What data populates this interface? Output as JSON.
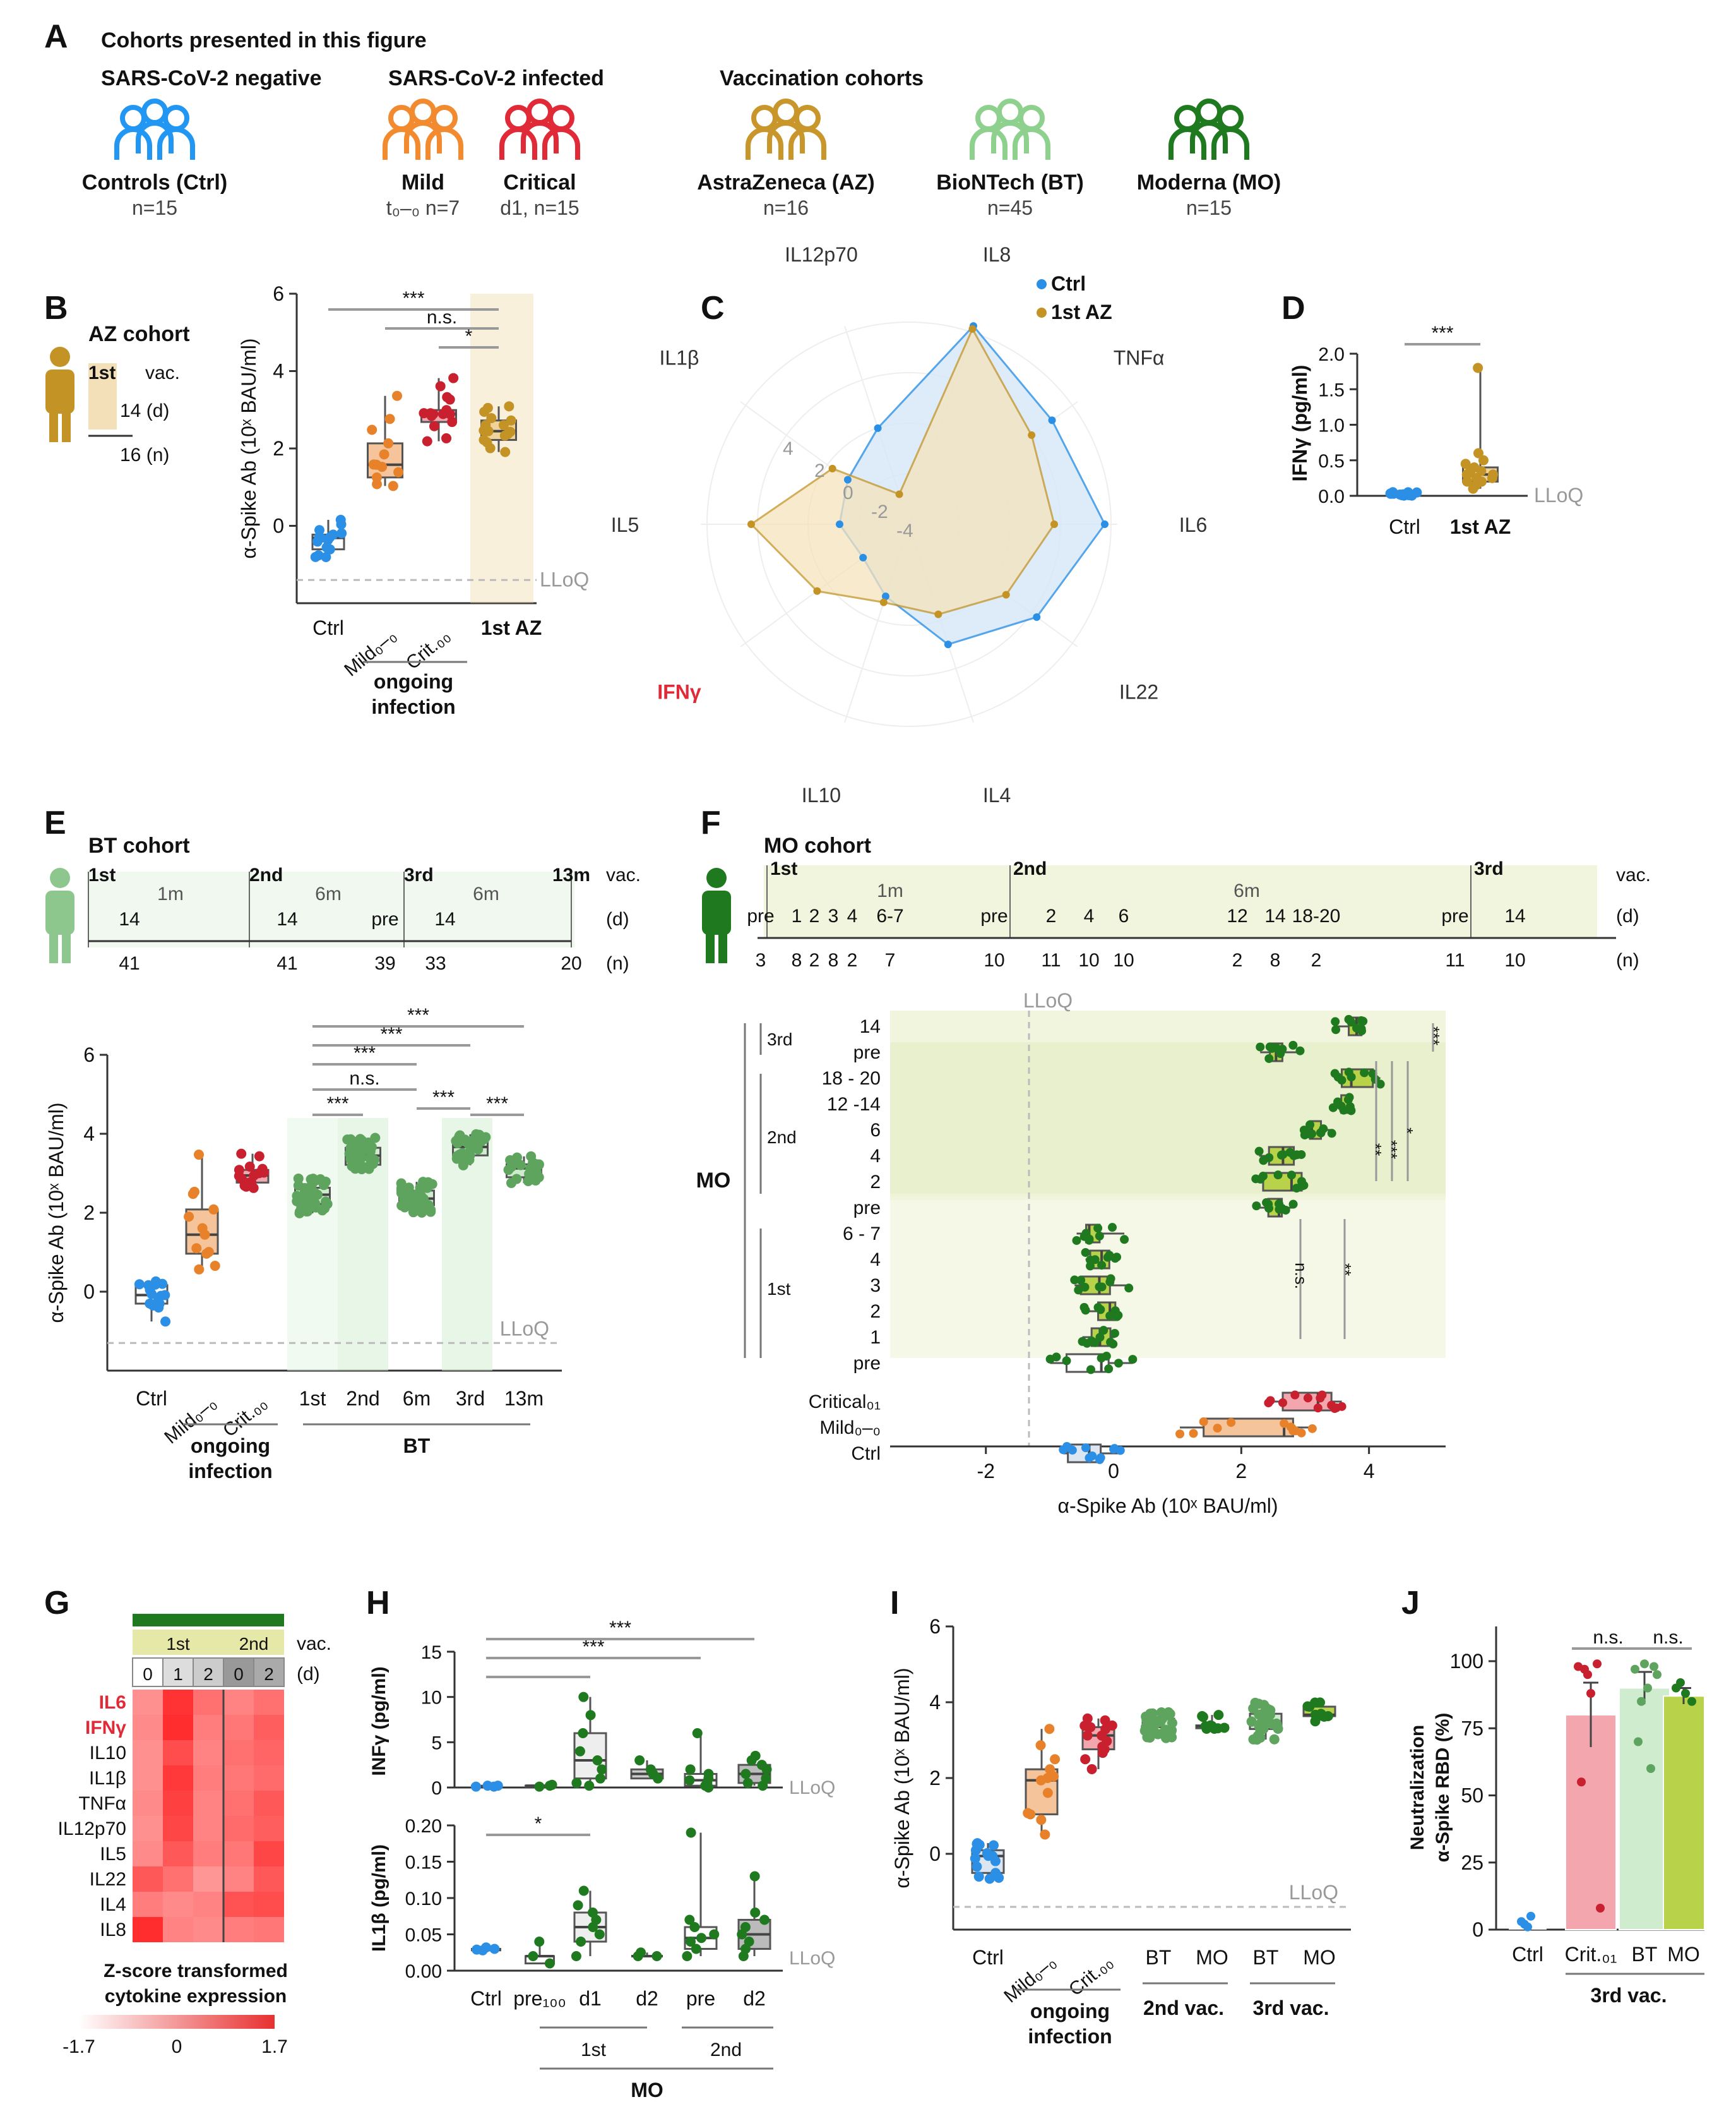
{
  "figure": {
    "panels": [
      "A",
      "B",
      "C",
      "D",
      "E",
      "F",
      "G",
      "H",
      "I",
      "J"
    ]
  },
  "panelA": {
    "title": "Cohorts presented in this figure",
    "groups": [
      {
        "header": "SARS-CoV-2 negative"
      },
      {
        "header": "SARS-CoV-2 infected"
      },
      {
        "header": "Vaccination cohorts"
      }
    ],
    "cohorts": [
      {
        "name": "Controls (Ctrl)",
        "n": "n=15",
        "color": "#2196f3",
        "icon": "people-group-icon"
      },
      {
        "name": "Mild",
        "n": "t₀–₀ n=7",
        "color": "#f28a30",
        "icon": "people-group-icon"
      },
      {
        "name": "Critical",
        "n": "d1, n=15",
        "color": "#e02a38",
        "icon": "people-group-icon"
      },
      {
        "name": "AstraZeneca (AZ)",
        "n": "n=16",
        "color": "#c8962a",
        "icon": "people-group-icon"
      },
      {
        "name": "BioNTech (BT)",
        "n": "n=45",
        "color": "#8ed08e",
        "icon": "people-group-icon"
      },
      {
        "name": "Moderna (MO)",
        "n": "n=15",
        "color": "#1f7a1f",
        "icon": "people-group-icon"
      }
    ]
  },
  "panelB": {
    "header": "AZ cohort",
    "timeline": {
      "dose": "1st",
      "vac": "vac.",
      "days": "14 (d)",
      "n": "16 (n)"
    },
    "ylabel": "α-Spike Ab (10ˣ BAU/ml)",
    "lloq": "LLoQ",
    "xlabels": [
      "Ctrl",
      "Mild₀–₀",
      "Crit.₀₀",
      "1st AZ"
    ],
    "group_label": [
      "ongoing",
      "infection"
    ],
    "sig": [
      "***",
      "n.s.",
      "*"
    ]
  },
  "panelC": {
    "legend": [
      "Ctrl",
      "1st AZ"
    ],
    "axes": [
      "IL8",
      "TNFα",
      "IL6",
      "IL22",
      "IL4",
      "IL10",
      "IFNγ",
      "IL5",
      "IL1β",
      "IL12p70"
    ],
    "radial_ticks": [
      "4",
      "2",
      "0",
      "-2",
      "-4"
    ]
  },
  "panelD": {
    "ylabel": "IFNγ (pg/ml)",
    "xlabels": [
      "Ctrl",
      "1st AZ"
    ],
    "lloq": "LLoQ",
    "sig": "***"
  },
  "panelE": {
    "header": "BT cohort",
    "timeline": {
      "doses": [
        "1st",
        "2nd",
        "3rd",
        "13m"
      ],
      "intervals": [
        "1m",
        "6m",
        "6m"
      ],
      "days": [
        "14",
        "14",
        "pre",
        "14"
      ],
      "n": [
        "41",
        "41",
        "39",
        "33",
        "20"
      ],
      "vac": "vac.",
      "d": "(d)",
      "nlabel": "(n)"
    },
    "ylabel": "α-Spike Ab (10ˣ BAU/ml)",
    "lloq": "LLoQ",
    "xlabels": [
      "Ctrl",
      "Mild₀–₀",
      "Crit.₀₀",
      "1st",
      "2nd",
      "6m",
      "3rd",
      "13m"
    ],
    "group_label": [
      "ongoing",
      "infection"
    ],
    "group_bt": "BT",
    "sig": [
      "***",
      "***",
      "***",
      "n.s.",
      "***",
      "***",
      "***"
    ]
  },
  "panelF": {
    "header": "MO cohort",
    "timeline": {
      "doses": [
        "1st",
        "2nd",
        "3rd"
      ],
      "intervals": [
        "1m",
        "6m"
      ],
      "days": [
        "pre",
        "1",
        "2",
        "3",
        "4",
        "6-7",
        "pre",
        "2",
        "4",
        "6",
        "12",
        "14",
        "18-20",
        "pre",
        "14"
      ],
      "n": [
        "3",
        "8",
        "2",
        "8",
        "2",
        "7",
        "10",
        "11",
        "10",
        "10",
        "2",
        "8",
        "2",
        "11",
        "10"
      ],
      "vac": "vac.",
      "d": "(d)",
      "nlabel": "(n)"
    },
    "lloq": "LLoQ",
    "rowlabels": [
      "14",
      "pre",
      "18 - 20",
      "12 -14",
      "6",
      "4",
      "2",
      "pre",
      "6 - 7",
      "4",
      "3",
      "2",
      "1",
      "pre",
      "Critical₀₁",
      "Mild₀–₀",
      "Ctrl"
    ],
    "dose_labels": [
      "3rd",
      "2nd",
      "1st"
    ],
    "group_label": "MO",
    "xlabel": "α-Spike Ab (10ˣ BAU/ml)",
    "xticks": [
      "-2",
      "0",
      "2",
      "4"
    ],
    "sig": [
      "***",
      "**",
      "***",
      "*",
      "n.s.",
      "**"
    ]
  },
  "panelG": {
    "dose_labels": [
      "1st",
      "2nd"
    ],
    "days": [
      "0",
      "1",
      "2",
      "0",
      "2"
    ],
    "vac": "vac.",
    "d": "(d)",
    "rows": [
      "IL6",
      "IFNγ",
      "IL10",
      "IL1β",
      "TNFα",
      "IL12p70",
      "IL5",
      "IL22",
      "IL4",
      "IL8"
    ],
    "highlight_rows": [
      "IL6",
      "IFNγ"
    ],
    "values": [
      [
        0.1,
        1.6,
        0.6,
        0.3,
        0.6
      ],
      [
        0.2,
        1.7,
        0.4,
        0.5,
        0.9
      ],
      [
        0.1,
        1.2,
        0.3,
        0.6,
        0.8
      ],
      [
        0.1,
        1.5,
        0.4,
        0.5,
        0.7
      ],
      [
        0.2,
        1.4,
        0.3,
        0.6,
        1.0
      ],
      [
        0.1,
        1.3,
        0.3,
        0.7,
        0.9
      ],
      [
        0.2,
        1.0,
        0.4,
        0.5,
        1.3
      ],
      [
        1.0,
        0.6,
        0.0,
        0.3,
        1.0
      ],
      [
        0.4,
        0.2,
        0.3,
        1.1,
        1.2
      ],
      [
        1.7,
        0.3,
        0.2,
        0.4,
        0.5
      ]
    ],
    "scale_title": [
      "Z-score transformed",
      "cytokine expression"
    ],
    "scale_ticks": [
      "-1.7",
      "0",
      "1.7"
    ]
  },
  "panelH": {
    "top": {
      "ylabel": "INFγ (pg/ml)",
      "yticks": [
        "0",
        "5",
        "10",
        "15"
      ],
      "lloq": "LLoQ",
      "sig": [
        "***",
        "***"
      ]
    },
    "bottom": {
      "ylabel": "IL1β (pg/ml)",
      "yticks": [
        "0.00",
        "0.05",
        "0.10",
        "0.15",
        "0.20"
      ],
      "lloq": "LLoQ",
      "sig": [
        "*"
      ]
    },
    "xlabels": [
      "Ctrl",
      "pre₁₀₀",
      "d1",
      "d2",
      "pre",
      "d2"
    ],
    "dose_labels": [
      "1st",
      "2nd"
    ],
    "group_label": "MO"
  },
  "panelI": {
    "ylabel": "α-Spike Ab (10ˣ BAU/ml)",
    "yticks": [
      "0",
      "2",
      "4",
      "6"
    ],
    "lloq": "LLoQ",
    "xlabels": [
      "Ctrl",
      "Mild₀–₀",
      "Crit.₀₀",
      "BT",
      "MO",
      "BT",
      "MO"
    ],
    "group_label": [
      "ongoing",
      "infection"
    ],
    "vac_labels": [
      "2nd vac.",
      "3rd vac."
    ]
  },
  "panelJ": {
    "ylabel": [
      "Neutralization",
      "α-Spike RBD (%)"
    ],
    "yticks": [
      "0",
      "25",
      "50",
      "75",
      "100"
    ],
    "xlabels": [
      "Ctrl",
      "Crit.₀₁",
      "BT",
      "MO"
    ],
    "vac_label": "3rd vac.",
    "sig": [
      "n.s.",
      "n.s."
    ]
  },
  "chart_data": [
    {
      "type": "scatter",
      "title": "",
      "ylabel": "α-Spike Ab (10ˣ BAU/ml)",
      "ylim": [
        -2,
        6
      ],
      "categories": [
        "Ctrl",
        "Mild",
        "Crit.",
        "1st AZ"
      ],
      "series": [
        {
          "values": [
            -0.3,
            2.2,
            3.0,
            2.5
          ]
        }
      ]
    },
    {
      "type": "scatter",
      "ylabel": "IFNγ (pg/ml)",
      "ylim": [
        0,
        2.0
      ],
      "categories": [
        "Ctrl",
        "1st AZ"
      ],
      "series": [
        {
          "values": [
            0.03,
            0.3
          ]
        }
      ]
    },
    {
      "type": "scatter",
      "ylabel": "α-Spike Ab (10ˣ BAU/ml)",
      "ylim": [
        -2,
        6
      ],
      "categories": [
        "Ctrl",
        "Mild",
        "Crit.",
        "1st",
        "2nd",
        "6m",
        "3rd",
        "13m"
      ],
      "series": [
        {
          "values": [
            -0.3,
            2.1,
            3.1,
            2.4,
            3.5,
            2.4,
            3.6,
            3.1
          ]
        }
      ]
    },
    {
      "type": "scatter",
      "xlabel": "α-Spike Ab (10ˣ BAU/ml)",
      "xlim": [
        -3.5,
        5.2
      ],
      "categories": [
        "14",
        "pre",
        "18 - 20",
        "12 -14",
        "6",
        "4",
        "2",
        "pre",
        "6 - 7",
        "4",
        "3",
        "2",
        "1",
        "pre",
        "Critical",
        "Mild",
        "Ctrl"
      ],
      "series": [
        {
          "values": [
            3.7,
            2.6,
            3.8,
            3.6,
            3.2,
            2.6,
            2.6,
            2.6,
            -0.2,
            -0.2,
            -0.2,
            -0.2,
            -0.2,
            -0.3,
            3.0,
            2.2,
            -0.3
          ]
        }
      ]
    },
    {
      "type": "heatmap",
      "rows": [
        "IL6",
        "IFNγ",
        "IL10",
        "IL1β",
        "TNFα",
        "IL12p70",
        "IL5",
        "IL22",
        "IL4",
        "IL8"
      ],
      "columns": [
        "1st d0",
        "1st d1",
        "1st d2",
        "2nd d0",
        "2nd d2"
      ],
      "range": [
        -1.7,
        1.7
      ]
    },
    {
      "type": "scatter",
      "ylabel": "INFγ (pg/ml)",
      "ylim": [
        0,
        15
      ],
      "categories": [
        "Ctrl",
        "pre",
        "d1",
        "d2",
        "pre",
        "d2"
      ],
      "series": [
        {
          "values": [
            0.2,
            0.2,
            2.5,
            2.0,
            0.8,
            1.5
          ]
        }
      ]
    },
    {
      "type": "scatter",
      "ylabel": "IL1β (pg/ml)",
      "ylim": [
        0,
        0.2
      ],
      "categories": [
        "Ctrl",
        "pre",
        "d1",
        "d2",
        "pre",
        "d2"
      ],
      "series": [
        {
          "values": [
            0.03,
            0.02,
            0.06,
            0.02,
            0.045,
            0.05
          ]
        }
      ]
    },
    {
      "type": "scatter",
      "ylabel": "α-Spike Ab (10ˣ BAU/ml)",
      "ylim": [
        -2,
        6
      ],
      "categories": [
        "Ctrl",
        "Mild",
        "Crit.",
        "BT 2nd",
        "MO 2nd",
        "BT 3rd",
        "MO 3rd"
      ],
      "series": [
        {
          "values": [
            -0.3,
            2.2,
            3.0,
            3.4,
            3.5,
            3.5,
            3.7
          ]
        }
      ]
    },
    {
      "type": "bar",
      "ylabel": "Neutralization α-Spike RBD (%)",
      "ylim": [
        0,
        100
      ],
      "categories": [
        "Ctrl",
        "Crit.",
        "BT",
        "MO"
      ],
      "values": [
        1,
        80,
        90,
        87
      ]
    }
  ]
}
